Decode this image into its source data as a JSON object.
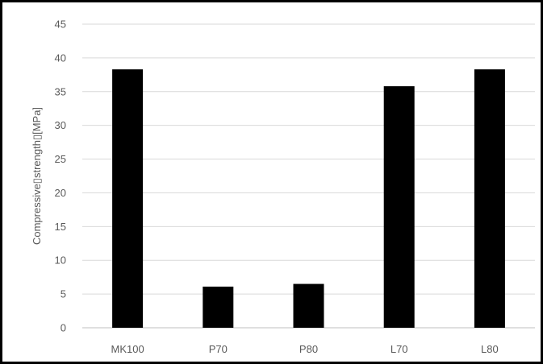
{
  "chart_data": {
    "type": "bar",
    "title": "",
    "xlabel": "",
    "ylabel": "Compressive▯strength▯[MPa]",
    "categories": [
      "MK100",
      "P70",
      "P80",
      "L70",
      "L80"
    ],
    "values": [
      38.3,
      6.1,
      6.5,
      35.8,
      38.3
    ],
    "ylim": [
      0,
      45
    ],
    "ytick_labels": [
      "0",
      "5",
      "10",
      "15",
      "20",
      "25",
      "30",
      "35",
      "40",
      "45"
    ],
    "grid": "horizontal",
    "legend": "none",
    "bar_color": "#000000",
    "grid_color": "#d9d9d9"
  }
}
